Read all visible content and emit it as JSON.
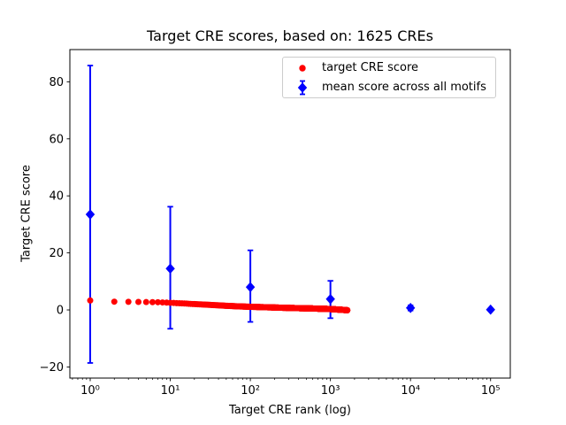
{
  "figure": {
    "title": "Target CRE scores, based on: 1625 CREs",
    "xlabel": "Target CRE rank (log)",
    "ylabel": "Target CRE score"
  },
  "legend": {
    "items": [
      {
        "label": "target CRE score",
        "marker": "circle",
        "color": "#ff0000"
      },
      {
        "label": "mean score across all motifs",
        "marker": "diamond-errorbar",
        "color": "#0000ff"
      }
    ]
  },
  "chart_data": {
    "type": "scatter",
    "title": "Target CRE scores, based on: 1625 CREs",
    "xlabel": "Target CRE rank (log)",
    "ylabel": "Target CRE score",
    "x_scale": "log",
    "grid": false,
    "legend_position": "upper right",
    "xlim_log10": [
      -0.254,
      5.246
    ],
    "ylim": [
      -23.9,
      91.3
    ],
    "x_ticks": [
      {
        "label": "10⁰",
        "value": 1
      },
      {
        "label": "10¹",
        "value": 10
      },
      {
        "label": "10²",
        "value": 100
      },
      {
        "label": "10³",
        "value": 1000
      },
      {
        "label": "10⁴",
        "value": 10000
      },
      {
        "label": "10⁵",
        "value": 100000
      }
    ],
    "y_ticks": [
      {
        "label": "−20",
        "value": -20
      },
      {
        "label": "0",
        "value": 0
      },
      {
        "label": "20",
        "value": 20
      },
      {
        "label": "40",
        "value": 40
      },
      {
        "label": "60",
        "value": 60
      },
      {
        "label": "80",
        "value": 80
      }
    ],
    "series": [
      {
        "name": "mean score across all motifs",
        "marker": "diamond",
        "color": "#0000ff",
        "points": [
          {
            "x": 1,
            "y": 33.5,
            "err_lo": -18.6,
            "err_hi": 85.7
          },
          {
            "x": 10,
            "y": 14.5,
            "err_lo": -6.6,
            "err_hi": 36.2
          },
          {
            "x": 100,
            "y": 8.0,
            "err_lo": -4.2,
            "err_hi": 20.9
          },
          {
            "x": 1000,
            "y": 3.8,
            "err_lo": -2.9,
            "err_hi": 10.2
          },
          {
            "x": 10000,
            "y": 0.7,
            "err_lo": -0.2,
            "err_hi": 1.6
          },
          {
            "x": 100000,
            "y": 0.1,
            "err_lo": -0.3,
            "err_hi": 0.5
          }
        ]
      },
      {
        "name": "target CRE score",
        "marker": "circle",
        "color": "#ff0000",
        "rank_min": 1,
        "rank_max": 1625,
        "note": "1625 points at integer ranks; score declines with rank, values interpolated in log10(rank) between anchors",
        "anchors": [
          {
            "rank": 1,
            "score": 3.3
          },
          {
            "rank": 2,
            "score": 2.9
          },
          {
            "rank": 3,
            "score": 2.85
          },
          {
            "rank": 4,
            "score": 2.8
          },
          {
            "rank": 5,
            "score": 2.75
          },
          {
            "rank": 7,
            "score": 2.7
          },
          {
            "rank": 10,
            "score": 2.5
          },
          {
            "rank": 15,
            "score": 2.25
          },
          {
            "rank": 20,
            "score": 2.05
          },
          {
            "rank": 30,
            "score": 1.8
          },
          {
            "rank": 50,
            "score": 1.45
          },
          {
            "rank": 70,
            "score": 1.25
          },
          {
            "rank": 100,
            "score": 1.1
          },
          {
            "rank": 150,
            "score": 0.95
          },
          {
            "rank": 200,
            "score": 0.85
          },
          {
            "rank": 300,
            "score": 0.7
          },
          {
            "rank": 500,
            "score": 0.55
          },
          {
            "rank": 700,
            "score": 0.45
          },
          {
            "rank": 1000,
            "score": 0.3
          },
          {
            "rank": 1300,
            "score": 0.1
          },
          {
            "rank": 1625,
            "score": -0.1
          }
        ]
      }
    ]
  }
}
